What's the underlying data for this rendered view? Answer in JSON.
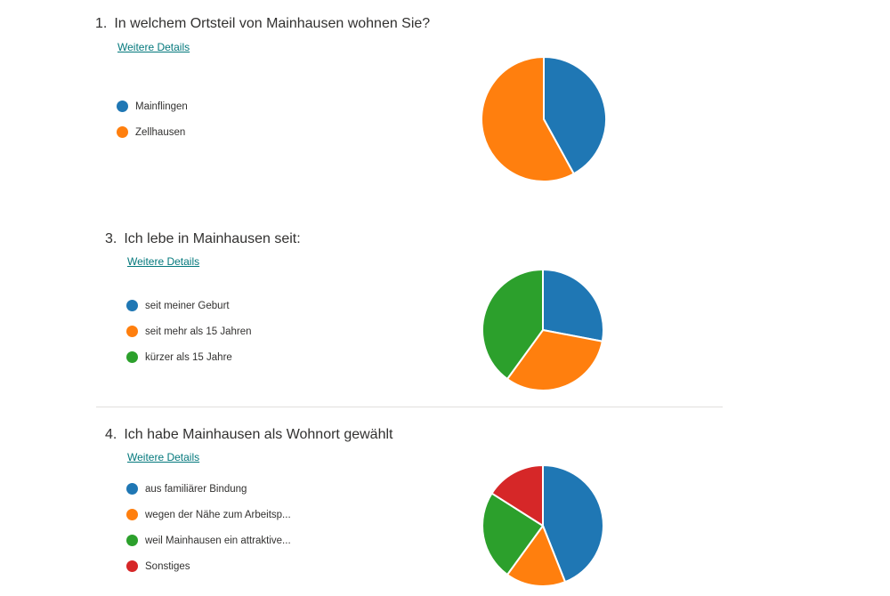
{
  "details_label": "Weitere Details",
  "questions": [
    {
      "number": "1.",
      "title": "In welchem Ortsteil von Mainhausen wohnen Sie?",
      "legend": [
        {
          "label": "Mainflingen",
          "color": "#1f77b4"
        },
        {
          "label": "Zellhausen",
          "color": "#ff7f0e"
        }
      ]
    },
    {
      "number": "3.",
      "title": "Ich lebe in Mainhausen seit:",
      "legend": [
        {
          "label": "seit meiner Geburt",
          "color": "#1f77b4"
        },
        {
          "label": "seit mehr als 15 Jahren",
          "color": "#ff7f0e"
        },
        {
          "label": "kürzer als 15 Jahre",
          "color": "#2ca02c"
        }
      ]
    },
    {
      "number": "4.",
      "title": "Ich habe Mainhausen als Wohnort gewählt",
      "legend": [
        {
          "label": "aus familiärer Bindung",
          "color": "#1f77b4"
        },
        {
          "label": "wegen der Nähe zum Arbeitsp...",
          "color": "#ff7f0e"
        },
        {
          "label": "weil Mainhausen ein attraktive...",
          "color": "#2ca02c"
        },
        {
          "label": "Sonstiges",
          "color": "#d62728"
        }
      ]
    }
  ],
  "chart_data": [
    {
      "type": "pie",
      "title": "In welchem Ortsteil von Mainhausen wohnen Sie?",
      "categories": [
        "Mainflingen",
        "Zellhausen"
      ],
      "values": [
        42,
        58
      ],
      "colors": [
        "#1f77b4",
        "#ff7f0e"
      ]
    },
    {
      "type": "pie",
      "title": "Ich lebe in Mainhausen seit:",
      "categories": [
        "seit meiner Geburt",
        "seit mehr als 15 Jahren",
        "kürzer als 15 Jahre"
      ],
      "values": [
        28,
        32,
        40
      ],
      "colors": [
        "#1f77b4",
        "#ff7f0e",
        "#2ca02c"
      ]
    },
    {
      "type": "pie",
      "title": "Ich habe Mainhausen als Wohnort gewählt",
      "categories": [
        "aus familiärer Bindung",
        "wegen der Nähe zum Arbeitsp...",
        "weil Mainhausen ein attraktive...",
        "Sonstiges"
      ],
      "values": [
        44,
        16,
        24,
        16
      ],
      "colors": [
        "#1f77b4",
        "#ff7f0e",
        "#2ca02c",
        "#d62728"
      ]
    }
  ]
}
